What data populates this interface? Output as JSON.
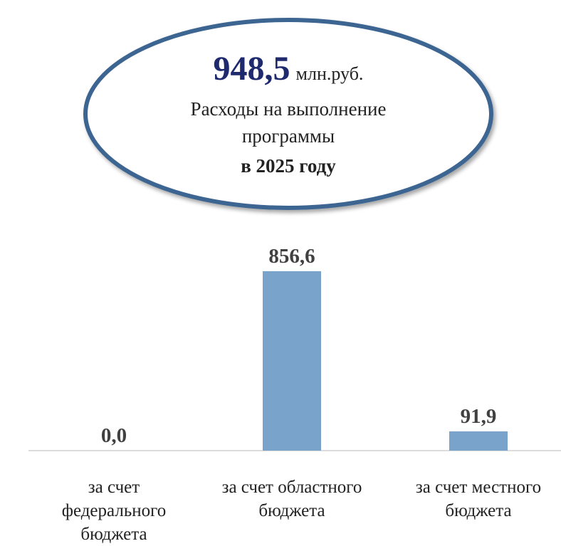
{
  "chart_data": {
    "type": "bar",
    "categories": [
      "за счет федерального бюджета",
      "за счет областного бюджета",
      "за счет местного бюджета"
    ],
    "values": [
      0,
      856.6,
      91.9
    ],
    "value_labels": [
      "0,0",
      "856,6",
      "91,9"
    ],
    "color": "#7aa3cb",
    "annotation": {
      "value_label": "948,5",
      "unit": "млн.руб.",
      "lines": [
        "Расходы на выполнение",
        "программы"
      ],
      "emphasis": "в 2025 году"
    }
  }
}
